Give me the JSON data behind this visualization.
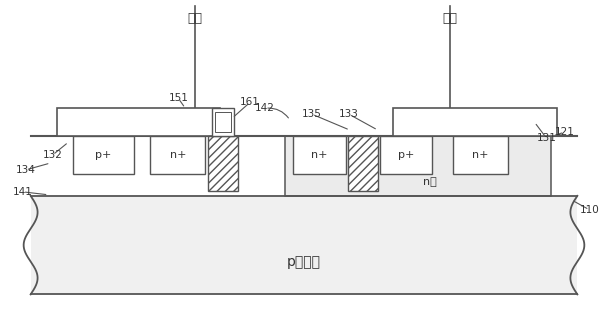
{
  "bg": "#ffffff",
  "lc": "#555555",
  "tc": "#333333",
  "fig_w": 6.08,
  "fig_h": 3.14,
  "dpi": 100,
  "cathode": "阴极",
  "anode": "阳极",
  "substrate_text": "p型衆底",
  "nwell_text": "n阱",
  "labels_ref": [
    "132",
    "151",
    "161",
    "142",
    "135",
    "133",
    "131",
    "121",
    "134",
    "141",
    "110"
  ]
}
